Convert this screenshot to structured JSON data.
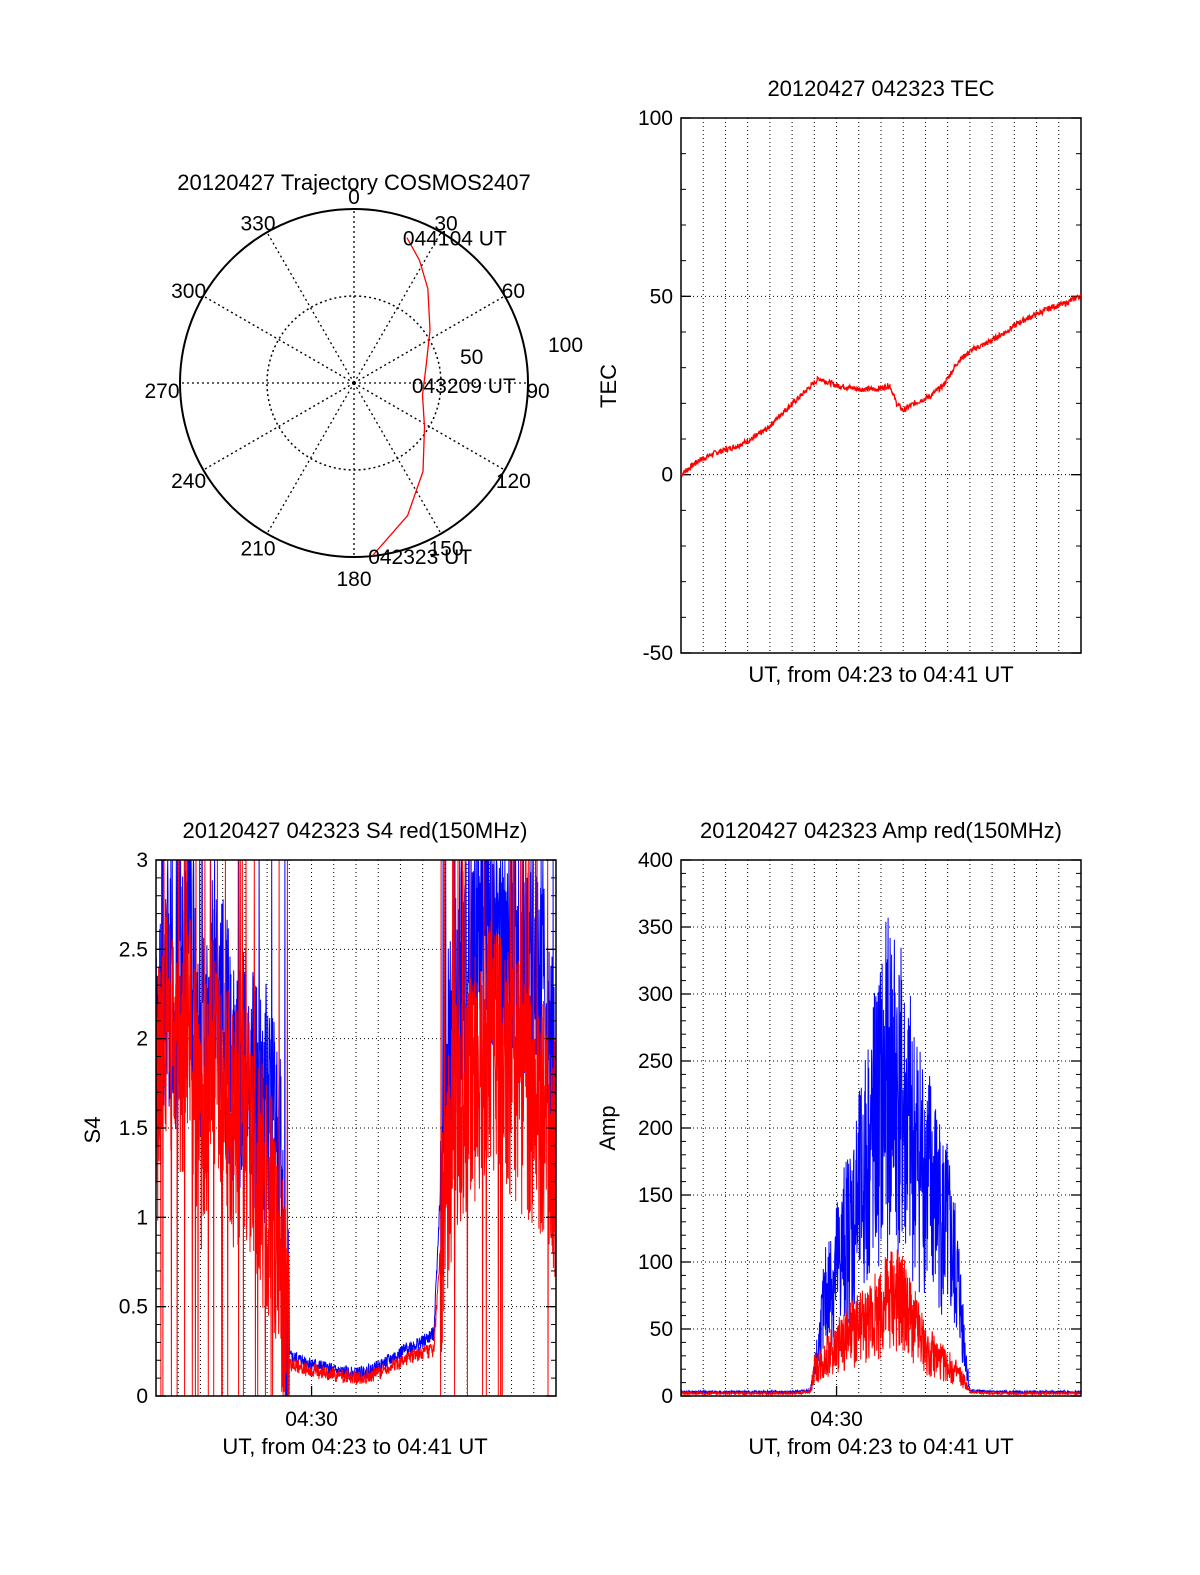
{
  "chart_data": [
    {
      "type": "polar",
      "title": "20120427 Trajectory COSMOS2407",
      "azimuth_labels": [
        "0",
        "30",
        "60",
        "90",
        "120",
        "150",
        "180",
        "210",
        "240",
        "270",
        "300",
        "330"
      ],
      "elevation_labels": [
        "50",
        "100"
      ],
      "annotations": [
        {
          "text": "044104 UT",
          "az": 20,
          "zen": 80
        },
        {
          "text": "043209 UT",
          "az": 92,
          "zen": 32
        },
        {
          "text": "042323 UT",
          "az": 174,
          "zen": 90
        }
      ],
      "series": [
        {
          "color": "#ff0000",
          "points": [
            {
              "az": 20,
              "zen": 80
            },
            {
              "az": 28,
              "zen": 72
            },
            {
              "az": 38,
              "zen": 62
            },
            {
              "az": 55,
              "zen": 48
            },
            {
              "az": 78,
              "zen": 38
            },
            {
              "az": 100,
              "zen": 36
            },
            {
              "az": 122,
              "zen": 43
            },
            {
              "az": 142,
              "zen": 58
            },
            {
              "az": 158,
              "zen": 74
            },
            {
              "az": 174,
              "zen": 90
            }
          ]
        }
      ]
    },
    {
      "type": "line",
      "title": "20120427 042323 TEC",
      "xlabel": "UT, from 04:23 to 04:41 UT",
      "ylabel": "TEC",
      "ylim": [
        -50,
        100
      ],
      "yticks": [
        -50,
        0,
        50,
        100
      ],
      "xlim": [
        0,
        18
      ],
      "xticks": [],
      "grid": true,
      "series": [
        {
          "color": "#ff0000",
          "x": [
            0.0,
            0.8,
            1.5,
            2.5,
            3.2,
            3.9,
            4.5,
            5.2,
            5.7,
            6.2,
            7.0,
            8.0,
            8.8,
            9.4,
            9.7,
            10.0,
            10.5,
            11.2,
            11.8,
            12.5,
            13.1,
            13.8,
            14.6,
            15.3,
            16.0,
            16.7,
            17.3,
            17.9
          ],
          "y": [
            0,
            4,
            6,
            8,
            10,
            13,
            17,
            21,
            24,
            27,
            25,
            24,
            24,
            25,
            20,
            18,
            20,
            22,
            25,
            32,
            35,
            37,
            40,
            43,
            45,
            47,
            48,
            50
          ]
        }
      ]
    },
    {
      "type": "line",
      "title": "20120427 042323 S4 red(150MHz)",
      "xlabel": "UT, from 04:23 to 04:41 UT",
      "ylabel": "S4",
      "ylim": [
        0,
        3
      ],
      "yticks": [
        0,
        0.5,
        1,
        1.5,
        2,
        2.5,
        3
      ],
      "yticklabels": [
        "0",
        "0.5",
        "1",
        "1.5",
        "2",
        "2.5",
        "3"
      ],
      "xlim": [
        0,
        18
      ],
      "xticks": [
        {
          "x": 7,
          "label": "04:30"
        }
      ],
      "grid": true,
      "series": [
        {
          "color": "#0000ff",
          "x": [
            0.0,
            0.5,
            1.0,
            1.5,
            2.0,
            2.5,
            3.0,
            3.5,
            4.0,
            4.5,
            5.0,
            5.5,
            6.0,
            6.5,
            7.0,
            7.5,
            8.0,
            8.5,
            9.0,
            9.5,
            10.0,
            10.5,
            11.0,
            11.5,
            12.0,
            12.5,
            13.0,
            13.5,
            14.0,
            14.5,
            15.0,
            15.5,
            16.0,
            16.5,
            17.0,
            17.5,
            18.0
          ],
          "y": [
            1.9,
            2.3,
            2.0,
            2.6,
            1.8,
            2.2,
            2.1,
            1.8,
            1.9,
            1.7,
            1.6,
            1.5,
            0.22,
            0.2,
            0.18,
            0.16,
            0.14,
            0.13,
            0.12,
            0.14,
            0.16,
            0.2,
            0.24,
            0.28,
            0.3,
            0.35,
            1.7,
            2.1,
            2.4,
            2.6,
            2.7,
            2.5,
            2.6,
            2.4,
            2.3,
            2.2,
            1.6
          ]
        },
        {
          "color": "#ff0000",
          "x": [
            0.0,
            0.5,
            1.0,
            1.5,
            2.0,
            2.5,
            3.0,
            3.5,
            4.0,
            4.5,
            5.0,
            5.5,
            6.0,
            6.5,
            7.0,
            7.5,
            8.0,
            8.5,
            9.0,
            9.5,
            10.0,
            10.5,
            11.0,
            11.5,
            12.0,
            12.5,
            13.0,
            13.5,
            14.0,
            14.5,
            15.0,
            15.5,
            16.0,
            16.5,
            17.0,
            17.5,
            18.0
          ],
          "y": [
            1.6,
            2.1,
            1.7,
            2.2,
            1.4,
            1.9,
            1.8,
            1.5,
            1.6,
            1.3,
            1.1,
            0.9,
            0.18,
            0.16,
            0.14,
            0.13,
            0.12,
            0.11,
            0.1,
            0.11,
            0.13,
            0.16,
            0.19,
            0.22,
            0.24,
            0.26,
            1.2,
            1.5,
            1.7,
            1.8,
            2.0,
            1.9,
            1.8,
            1.7,
            1.6,
            1.5,
            1.3
          ]
        }
      ]
    },
    {
      "type": "line",
      "title": "20120427 042323 Amp red(150MHz)",
      "xlabel": "UT, from 04:23 to 04:41 UT",
      "ylabel": "Amp",
      "ylim": [
        0,
        400
      ],
      "yticks": [
        0,
        50,
        100,
        150,
        200,
        250,
        300,
        350,
        400
      ],
      "xlim": [
        0,
        18
      ],
      "xticks": [
        {
          "x": 7,
          "label": "04:30"
        }
      ],
      "grid": true,
      "series": [
        {
          "color": "#0000ff",
          "x": [
            0,
            1,
            2,
            3,
            4,
            5,
            5.8,
            6.0,
            6.5,
            7.0,
            7.5,
            8.0,
            8.5,
            9.0,
            9.5,
            10.0,
            10.5,
            11.0,
            11.5,
            12.0,
            12.5,
            12.8,
            13,
            14,
            15,
            16,
            17,
            18
          ],
          "y": [
            2,
            2,
            2,
            2,
            2,
            2,
            3,
            20,
            90,
            120,
            150,
            180,
            230,
            270,
            300,
            260,
            230,
            210,
            180,
            150,
            100,
            40,
            3,
            2,
            2,
            2,
            2,
            2
          ]
        },
        {
          "color": "#ff0000",
          "x": [
            0,
            1,
            2,
            3,
            4,
            5,
            5.8,
            6.0,
            6.5,
            7.0,
            7.5,
            8.0,
            8.5,
            9.0,
            9.5,
            10.0,
            10.5,
            11.0,
            11.5,
            12.0,
            12.5,
            12.8,
            13,
            14,
            15,
            16,
            17,
            18
          ],
          "y": [
            1,
            1,
            1,
            1,
            1,
            1,
            2,
            25,
            35,
            45,
            55,
            62,
            70,
            80,
            95,
            85,
            65,
            45,
            35,
            28,
            20,
            12,
            2,
            1,
            1,
            1,
            1,
            1
          ]
        }
      ]
    }
  ]
}
